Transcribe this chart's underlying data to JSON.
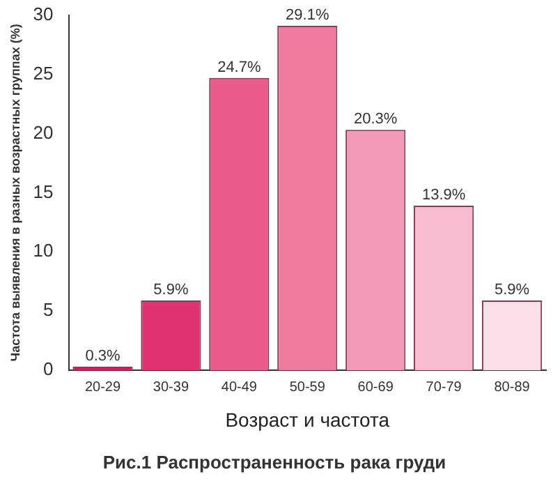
{
  "chart_data": {
    "type": "bar",
    "title": "Рис.1 Распространенность рака груди",
    "xlabel": "Возраст и частота",
    "ylabel": "Частота выявления в разных возрастных группах (%)",
    "categories": [
      "20-29",
      "30-39",
      "40-49",
      "50-59",
      "60-69",
      "70-79",
      "80-89"
    ],
    "values": [
      0.3,
      5.9,
      24.7,
      29.1,
      20.3,
      13.9,
      5.9
    ],
    "colors": [
      "#d81b60",
      "#e0336f",
      "#e85b8a",
      "#ee7aa0",
      "#f39ab8",
      "#f7bcd0",
      "#fbe0ea"
    ],
    "value_labels": [
      "0.3%",
      "5.9%",
      "24.7%",
      "29.1%",
      "20.3%",
      "13.9%",
      "5.9%"
    ],
    "ylim": [
      0,
      30
    ],
    "yticks": [
      0,
      5,
      10,
      15,
      20,
      25,
      30
    ],
    "grid": false,
    "legend": false
  }
}
